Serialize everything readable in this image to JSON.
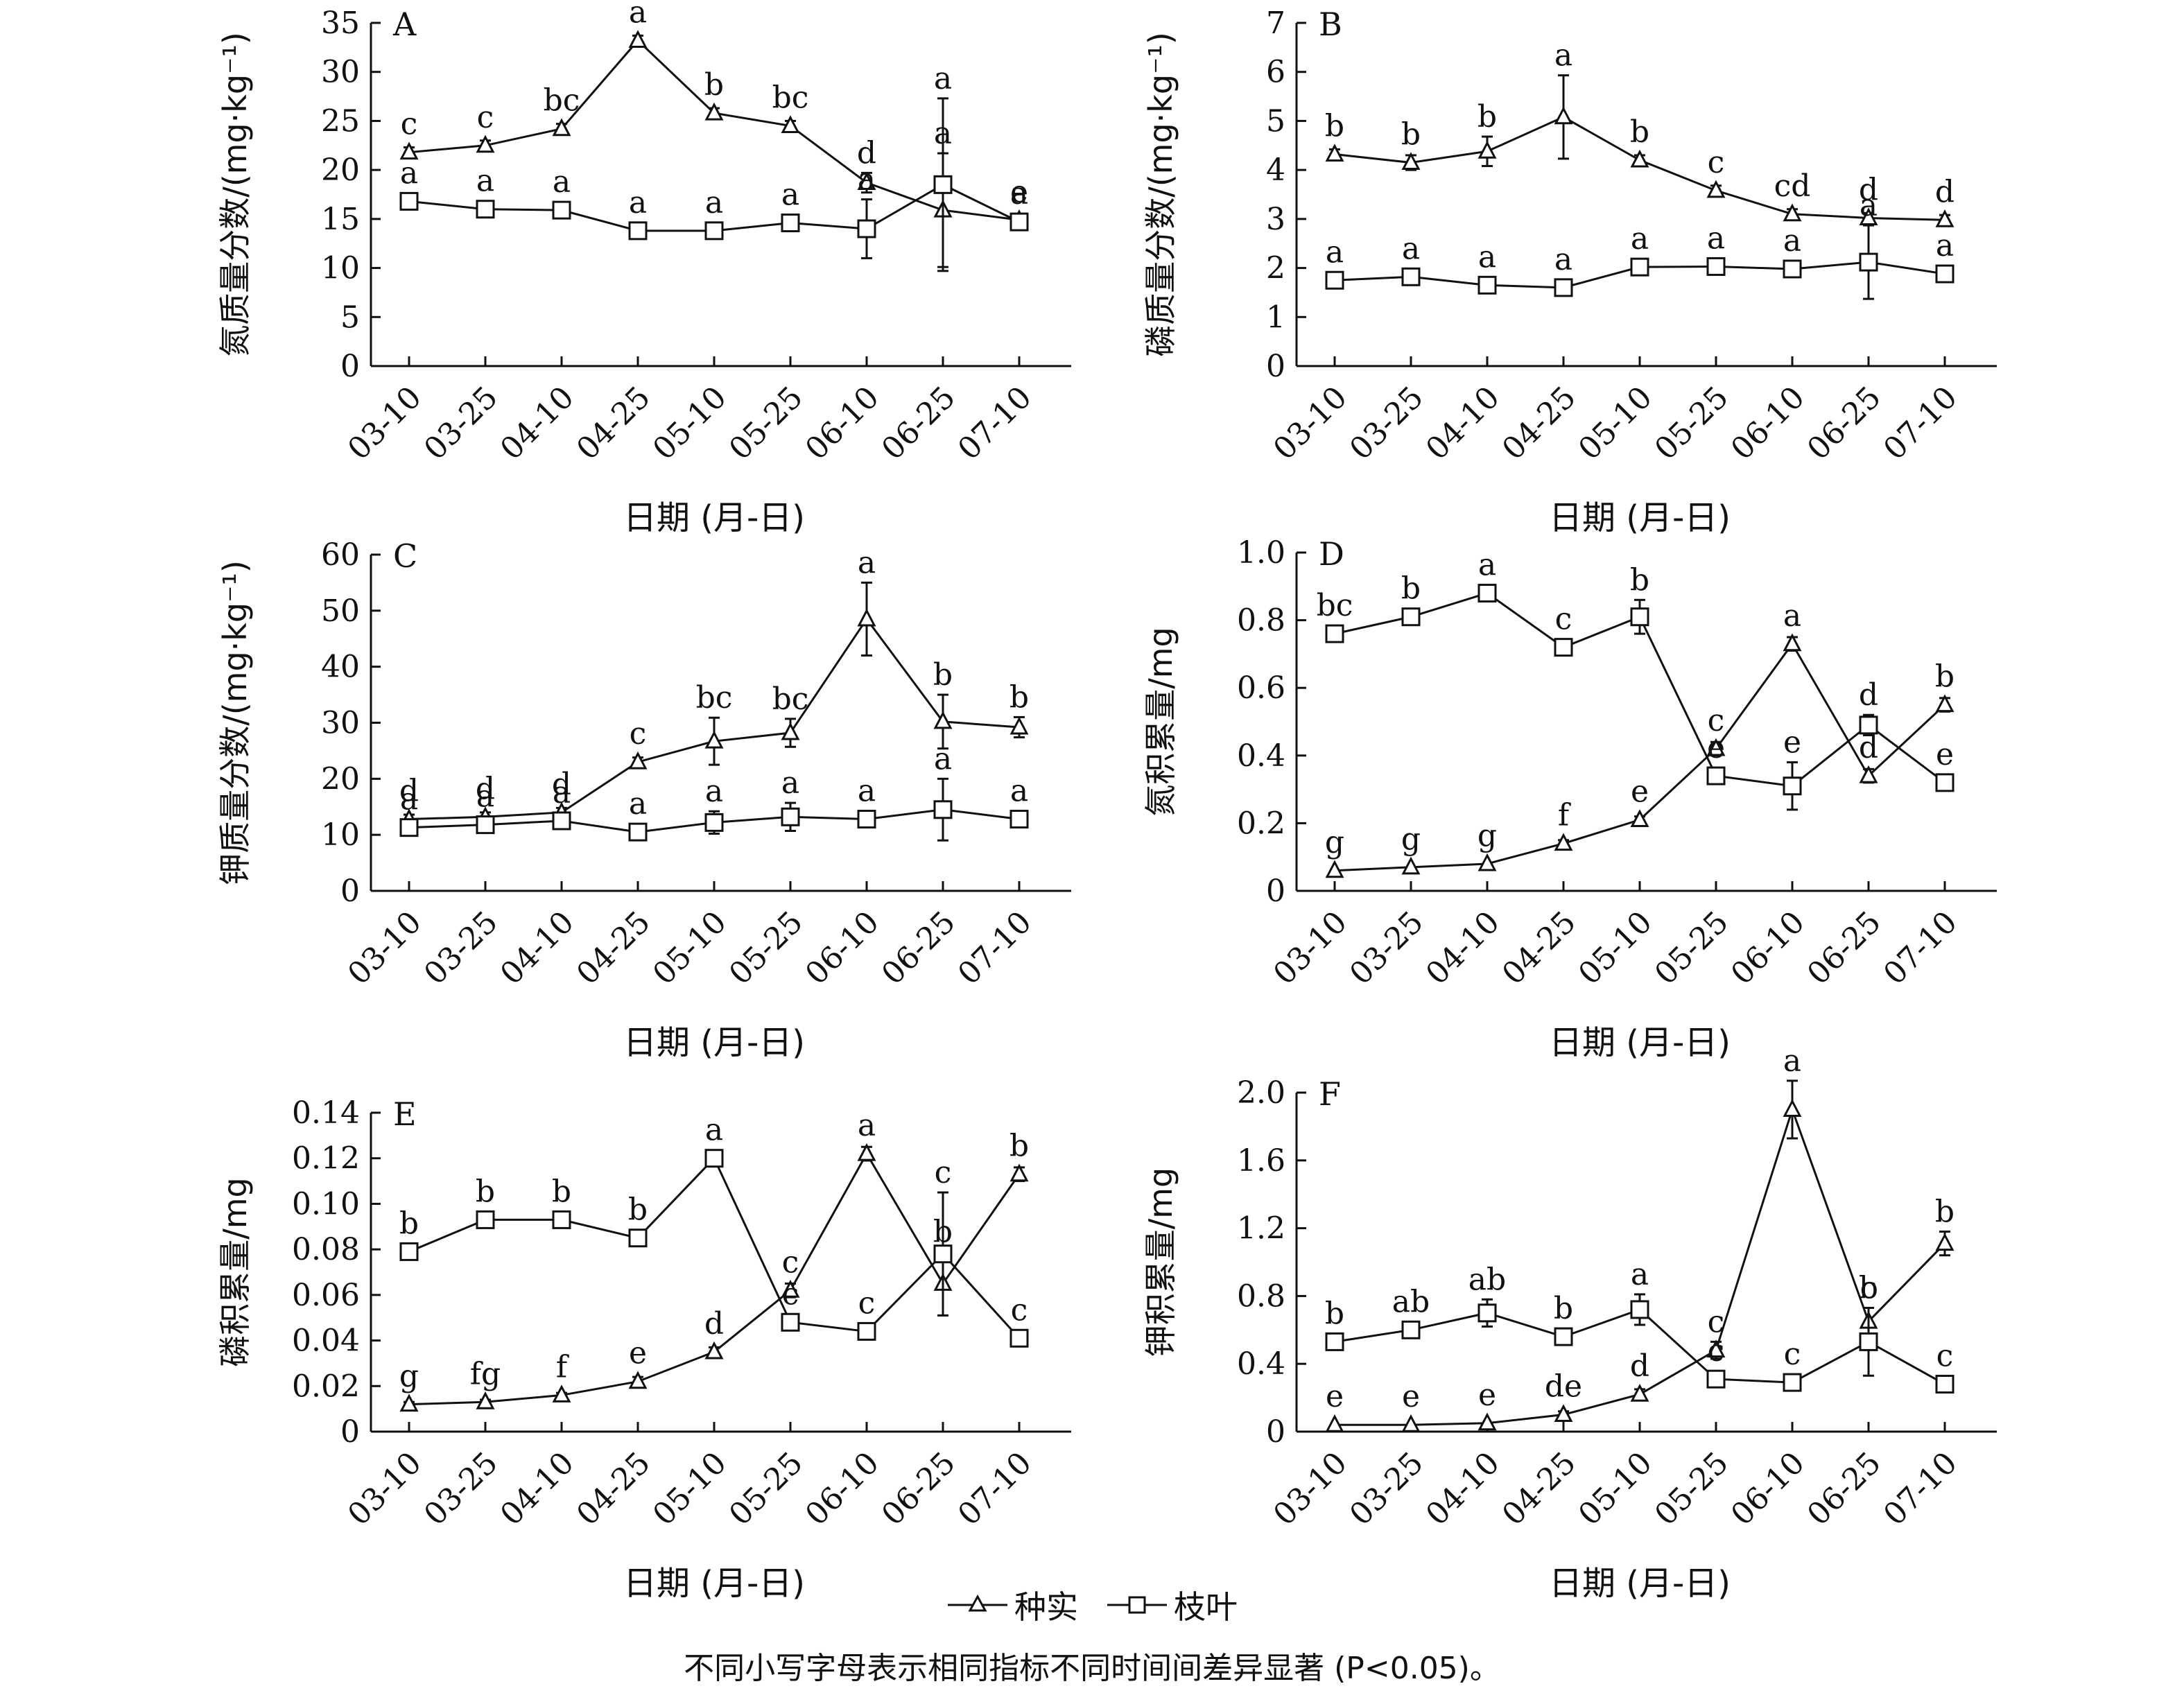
{
  "dates": [
    "03-10",
    "03-25",
    "04-10",
    "04-25",
    "05-10",
    "05-25",
    "06-10",
    "06-25",
    "07-10"
  ],
  "xlabel": "日期 (月-日)",
  "series_names": {
    "seed": "种实",
    "leaf": "枝叶"
  },
  "legend": [
    {
      "name": "种实",
      "marker": "triangle"
    },
    {
      "name": "枝叶",
      "marker": "square"
    }
  ],
  "caption": "不同小写字母表示相同指标不同时间间差异显著 (P<0.05)。",
  "chart_data": [
    {
      "panel": "A",
      "type": "line",
      "ylabel": "氮质量分数/(mg·kg⁻¹)",
      "ylim": [
        0,
        35
      ],
      "yticks": [
        "0",
        "5",
        "10",
        "15",
        "20",
        "25",
        "30",
        "35"
      ],
      "yticks_values": [
        0,
        5,
        10,
        15,
        20,
        25,
        30,
        35
      ],
      "series": [
        {
          "name": "种实",
          "marker": "triangle",
          "values": [
            21.8,
            22.5,
            24.2,
            33.2,
            25.8,
            24.5,
            18.7,
            15.9,
            14.9
          ],
          "errors": [
            0.5,
            0.5,
            0.5,
            0.5,
            0.5,
            0.5,
            1.0,
            5.8,
            0.5
          ],
          "letters": [
            "c",
            "c",
            "bc",
            "a",
            "b",
            "bc",
            "d",
            "a",
            "e"
          ]
        },
        {
          "name": "枝叶",
          "marker": "square",
          "values": [
            16.8,
            16.0,
            15.9,
            13.8,
            13.8,
            14.6,
            14.0,
            18.5,
            14.7
          ],
          "errors": [
            0.4,
            0.3,
            0.3,
            0.3,
            0.3,
            0.4,
            3.0,
            8.8,
            0.5
          ],
          "letters": [
            "a",
            "a",
            "a",
            "a",
            "a",
            "a",
            "a",
            "a",
            "a"
          ]
        }
      ]
    },
    {
      "panel": "B",
      "type": "line",
      "ylabel": "磷质量分数/(mg·kg⁻¹)",
      "ylim": [
        0,
        7
      ],
      "yticks": [
        "0",
        "1",
        "2",
        "3",
        "4",
        "5",
        "6",
        "7"
      ],
      "yticks_values": [
        0,
        1,
        2,
        3,
        4,
        5,
        6,
        7
      ],
      "series": [
        {
          "name": "种实",
          "marker": "triangle",
          "values": [
            4.32,
            4.15,
            4.38,
            5.08,
            4.2,
            3.58,
            3.1,
            3.02,
            2.98
          ],
          "errors": [
            0.1,
            0.15,
            0.3,
            0.85,
            0.1,
            0.1,
            0.1,
            0.1,
            0.1
          ],
          "letters": [
            "b",
            "b",
            "b",
            "a",
            "b",
            "c",
            "cd",
            "d",
            "d"
          ]
        },
        {
          "name": "枝叶",
          "marker": "square",
          "values": [
            1.75,
            1.82,
            1.65,
            1.6,
            2.02,
            2.03,
            1.98,
            2.12,
            1.88
          ],
          "errors": [
            0.05,
            0.05,
            0.05,
            0.05,
            0.05,
            0.05,
            0.05,
            0.75,
            0.05
          ],
          "letters": [
            "a",
            "a",
            "a",
            "a",
            "a",
            "a",
            "a",
            "a",
            "a"
          ]
        }
      ]
    },
    {
      "panel": "C",
      "type": "line",
      "ylabel": "钾质量分数/(mg·kg⁻¹)",
      "ylim": [
        0,
        60
      ],
      "yticks": [
        "0",
        "10",
        "20",
        "30",
        "40",
        "50",
        "60"
      ],
      "yticks_values": [
        0,
        10,
        20,
        30,
        40,
        50,
        60
      ],
      "series": [
        {
          "name": "种实",
          "marker": "triangle",
          "values": [
            12.8,
            13.2,
            14.0,
            23.0,
            26.7,
            28.2,
            48.5,
            30.2,
            29.2
          ],
          "errors": [
            0.8,
            0.8,
            0.8,
            0.8,
            4.2,
            2.5,
            6.5,
            4.8,
            1.8
          ],
          "letters": [
            "d",
            "d",
            "d",
            "c",
            "bc",
            "bc",
            "a",
            "b",
            "b"
          ]
        },
        {
          "name": "枝叶",
          "marker": "square",
          "values": [
            11.3,
            11.8,
            12.5,
            10.5,
            12.2,
            13.2,
            12.8,
            14.5,
            12.8
          ],
          "errors": [
            0.8,
            0.8,
            0.8,
            0.8,
            2.0,
            2.5,
            0.8,
            5.5,
            0.8
          ],
          "letters": [
            "a",
            "a",
            "a",
            "a",
            "a",
            "a",
            "a",
            "a",
            "a"
          ]
        }
      ]
    },
    {
      "panel": "D",
      "type": "line",
      "ylabel": "氮积累量/mg",
      "ylim": [
        0,
        1.0
      ],
      "yticks": [
        "0",
        "0.2",
        "0.4",
        "0.6",
        "0.8",
        "1.0"
      ],
      "yticks_values": [
        0,
        0.2,
        0.4,
        0.6,
        0.8,
        1.0
      ],
      "series": [
        {
          "name": "种实",
          "marker": "triangle",
          "values": [
            0.06,
            0.07,
            0.08,
            0.14,
            0.21,
            0.42,
            0.73,
            0.34,
            0.55
          ],
          "errors": [
            0.005,
            0.005,
            0.005,
            0.01,
            0.01,
            0.02,
            0.02,
            0.02,
            0.02
          ],
          "letters": [
            "g",
            "g",
            "g",
            "f",
            "e",
            "c",
            "a",
            "d",
            "b"
          ]
        },
        {
          "name": "枝叶",
          "marker": "square",
          "values": [
            0.76,
            0.81,
            0.88,
            0.72,
            0.81,
            0.34,
            0.31,
            0.49,
            0.32
          ],
          "errors": [
            0.01,
            0.01,
            0.01,
            0.01,
            0.05,
            0.02,
            0.07,
            0.03,
            0.01
          ],
          "letters": [
            "bc",
            "b",
            "a",
            "c",
            "b",
            "e",
            "e",
            "d",
            "e"
          ]
        }
      ]
    },
    {
      "panel": "E",
      "type": "line",
      "ylabel": "磷积累量/mg",
      "ylim": [
        0,
        0.14
      ],
      "yticks": [
        "0",
        "0.02",
        "0.04",
        "0.06",
        "0.08",
        "0.10",
        "0.12",
        "0.14"
      ],
      "yticks_values": [
        0,
        0.02,
        0.04,
        0.06,
        0.08,
        0.1,
        0.12,
        0.14
      ],
      "series": [
        {
          "name": "种实",
          "marker": "triangle",
          "values": [
            0.012,
            0.013,
            0.016,
            0.022,
            0.035,
            0.062,
            0.122,
            0.065,
            0.113
          ],
          "errors": [
            0.001,
            0.001,
            0.001,
            0.002,
            0.002,
            0.003,
            0.003,
            0.014,
            0.003
          ],
          "letters": [
            "g",
            "fg",
            "f",
            "e",
            "d",
            "c",
            "a",
            "b",
            "b"
          ]
        },
        {
          "name": "枝叶",
          "marker": "square",
          "values": [
            0.079,
            0.093,
            0.093,
            0.085,
            0.12,
            0.048,
            0.044,
            0.078,
            0.041
          ],
          "errors": [
            0.002,
            0.002,
            0.002,
            0.002,
            0.003,
            0.002,
            0.002,
            0.027,
            0.002
          ],
          "letters": [
            "b",
            "b",
            "b",
            "b",
            "a",
            "c",
            "c",
            "c",
            "c"
          ]
        }
      ]
    },
    {
      "panel": "F",
      "type": "line",
      "ylabel": "钾积累量/mg",
      "ylim": [
        0,
        2.0
      ],
      "yticks": [
        "0",
        "0.4",
        "0.8",
        "1.2",
        "1.6",
        "2.0"
      ],
      "yticks_values": [
        0,
        0.4,
        0.8,
        1.2,
        1.6,
        2.0
      ],
      "series": [
        {
          "name": "种实",
          "marker": "triangle",
          "values": [
            0.04,
            0.04,
            0.05,
            0.1,
            0.22,
            0.48,
            1.9,
            0.65,
            1.11
          ],
          "errors": [
            0.005,
            0.005,
            0.005,
            0.02,
            0.03,
            0.05,
            0.17,
            0.08,
            0.07
          ],
          "letters": [
            "e",
            "e",
            "e",
            "de",
            "d",
            "c",
            "a",
            "b",
            "b"
          ]
        },
        {
          "name": "枝叶",
          "marker": "square",
          "values": [
            0.53,
            0.6,
            0.7,
            0.56,
            0.72,
            0.31,
            0.29,
            0.53,
            0.28
          ],
          "errors": [
            0.02,
            0.03,
            0.08,
            0.02,
            0.09,
            0.02,
            0.02,
            0.2,
            0.02
          ],
          "letters": [
            "b",
            "ab",
            "ab",
            "b",
            "a",
            "c",
            "c",
            "c",
            "c"
          ]
        }
      ]
    }
  ]
}
